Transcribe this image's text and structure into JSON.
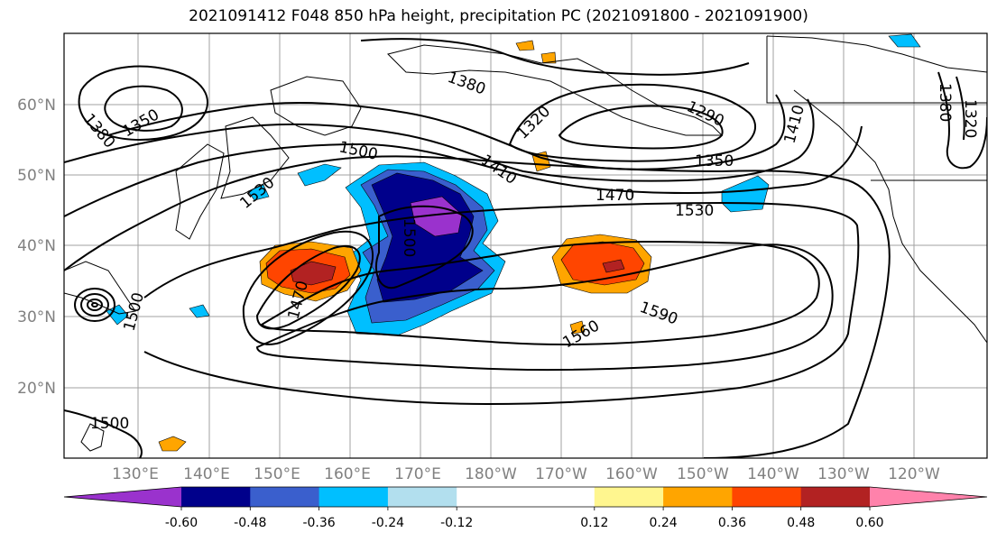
{
  "title": "2021091412 F048 850 hPa height, precipitation PC (2021091800 - 2021091900)",
  "map": {
    "lon_labels": [
      "130°E",
      "140°E",
      "150°E",
      "160°E",
      "170°E",
      "180°W",
      "170°W",
      "160°W",
      "150°W",
      "140°W",
      "130°W",
      "120°W"
    ],
    "lat_labels": [
      "60°N",
      "50°N",
      "40°N",
      "30°N",
      "20°N"
    ],
    "contour_labels": [
      "1380",
      "1350",
      "1380",
      "1320",
      "1290",
      "1500",
      "1410",
      "1350",
      "1470",
      "1530",
      "1530",
      "1500",
      "1470",
      "1500",
      "1590",
      "1560",
      "1500",
      "1410",
      "1380",
      "1320"
    ]
  },
  "colorbar": {
    "colors": [
      "#9a32cd",
      "#00008b",
      "#3a5fcd",
      "#00bfff",
      "#b2dfee",
      "#ffffff",
      "#ffffff",
      "#fff68f",
      "#ffa500",
      "#ff4500",
      "#b22222",
      "#ff82ab"
    ],
    "tick_labels": [
      "-0.60",
      "-0.48",
      "-0.36",
      "-0.24",
      "-0.12",
      "0.12",
      "0.24",
      "0.36",
      "0.48",
      "0.60"
    ]
  }
}
